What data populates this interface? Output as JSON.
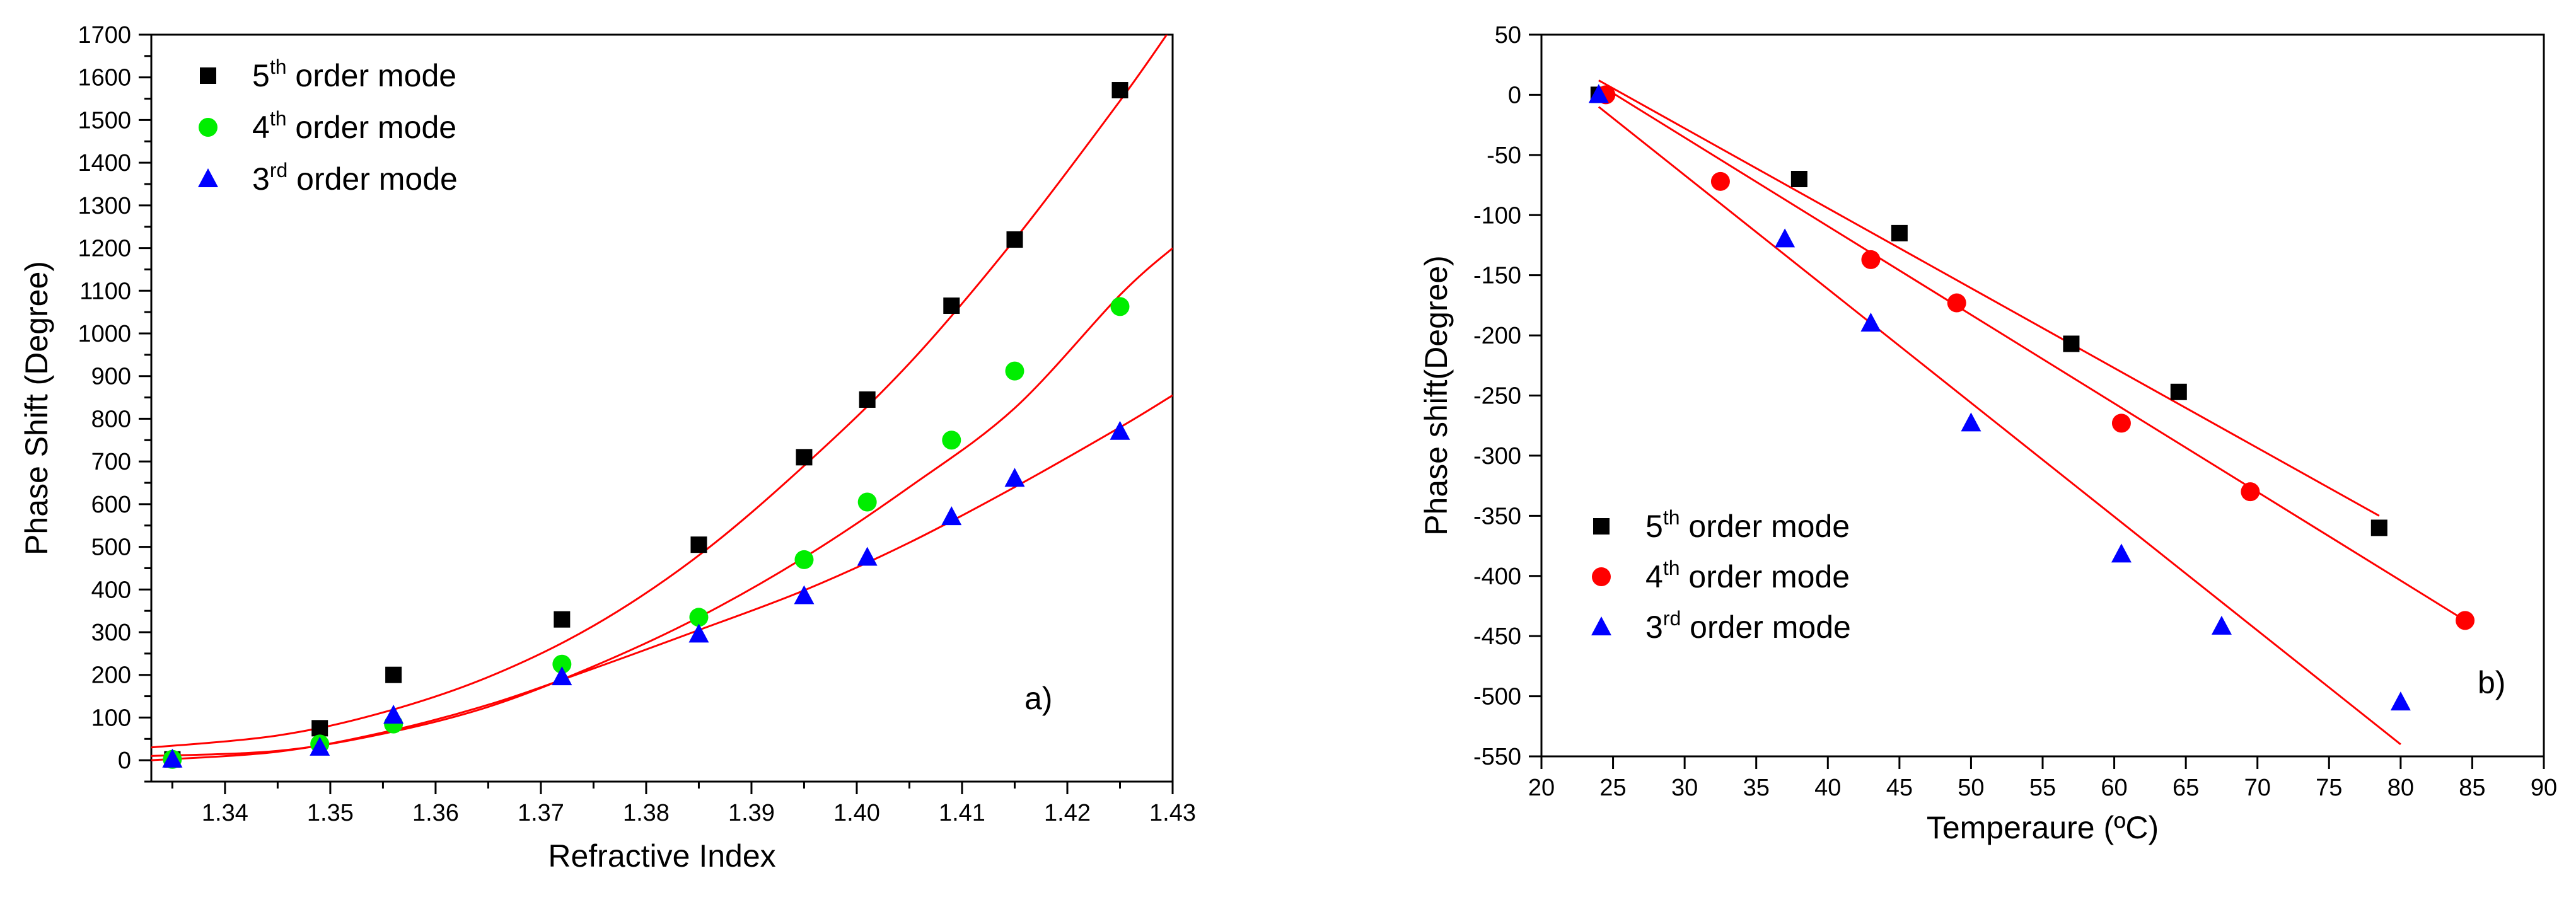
{
  "chart_data": [
    {
      "type": "scatter",
      "xlabel": "Refractive Index",
      "ylabel": "Phase Shift (Degree)",
      "xlim": [
        1.333,
        1.43
      ],
      "ylim": [
        -50,
        1700
      ],
      "xticks": [
        1.34,
        1.35,
        1.36,
        1.37,
        1.38,
        1.39,
        1.4,
        1.41,
        1.42,
        1.43
      ],
      "xtick_labels": [
        "1.34",
        "1.35",
        "1.36",
        "1.37",
        "1.38",
        "1.39",
        "1.40",
        "1.41",
        "1.42",
        "1.43"
      ],
      "yticks": [
        0,
        100,
        200,
        300,
        400,
        500,
        600,
        700,
        800,
        900,
        1000,
        1100,
        1200,
        1300,
        1400,
        1500,
        1600,
        1700
      ],
      "ytick_labels": [
        "0",
        "100",
        "200",
        "300",
        "400",
        "500",
        "600",
        "700",
        "800",
        "900",
        "1000",
        "1100",
        "1200",
        "1300",
        "1400",
        "1500",
        "1600",
        "1700"
      ],
      "panel_label": "a)",
      "legend_position": "top-left",
      "fit_type": "quadratic",
      "fit_color": "#ff0000",
      "series": [
        {
          "name": "5th order mode",
          "legend_base": "5",
          "legend_sup": "th",
          "legend_rest": " order mode",
          "marker": "square",
          "color": "#000000",
          "x": [
            1.335,
            1.349,
            1.356,
            1.372,
            1.385,
            1.395,
            1.401,
            1.409,
            1.415,
            1.425
          ],
          "y": [
            2,
            75,
            200,
            330,
            505,
            710,
            845,
            1065,
            1220,
            1570
          ],
          "fit": [
            [
              1.333,
              30
            ],
            [
              1.345,
              58
            ],
            [
              1.355,
              112
            ],
            [
              1.365,
              195
            ],
            [
              1.375,
              315
            ],
            [
              1.385,
              480
            ],
            [
              1.395,
              690
            ],
            [
              1.405,
              930
            ],
            [
              1.415,
              1220
            ],
            [
              1.425,
              1545
            ],
            [
              1.43,
              1720
            ]
          ]
        },
        {
          "name": "4th order mode",
          "legend_base": "4",
          "legend_sup": "th",
          "legend_rest": " order mode",
          "marker": "circle",
          "color": "#00ee00",
          "x": [
            1.335,
            1.349,
            1.356,
            1.372,
            1.385,
            1.395,
            1.401,
            1.409,
            1.415,
            1.425
          ],
          "y": [
            2,
            38,
            85,
            225,
            335,
            470,
            605,
            750,
            912,
            1063
          ],
          "fit": [
            [
              1.333,
              10
            ],
            [
              1.345,
              22
            ],
            [
              1.355,
              62
            ],
            [
              1.365,
              125
            ],
            [
              1.375,
              220
            ],
            [
              1.385,
              335
            ],
            [
              1.395,
              475
            ],
            [
              1.405,
              640
            ],
            [
              1.415,
              825
            ],
            [
              1.425,
              1090
            ],
            [
              1.43,
              1200
            ]
          ]
        },
        {
          "name": "3rd order mode",
          "legend_base": "3",
          "legend_sup": "rd",
          "legend_rest": " order mode",
          "marker": "triangle",
          "color": "#0000ff",
          "x": [
            1.335,
            1.349,
            1.356,
            1.372,
            1.385,
            1.395,
            1.401,
            1.409,
            1.415,
            1.425
          ],
          "y": [
            2,
            30,
            105,
            195,
            295,
            385,
            475,
            570,
            660,
            770
          ],
          "fit": [
            [
              1.333,
              0
            ],
            [
              1.345,
              20
            ],
            [
              1.355,
              65
            ],
            [
              1.365,
              130
            ],
            [
              1.375,
              215
            ],
            [
              1.385,
              305
            ],
            [
              1.395,
              398
            ],
            [
              1.405,
              510
            ],
            [
              1.415,
              640
            ],
            [
              1.425,
              780
            ],
            [
              1.43,
              855
            ]
          ]
        }
      ]
    },
    {
      "type": "scatter",
      "xlabel": "Temperaure (ºC)",
      "ylabel": "Phase shift(Degree)",
      "xlim": [
        20,
        90
      ],
      "ylim": [
        -550,
        50
      ],
      "xticks": [
        20,
        25,
        30,
        35,
        40,
        45,
        50,
        55,
        60,
        65,
        70,
        75,
        80,
        85,
        90
      ],
      "xtick_labels": [
        "20",
        "25",
        "30",
        "35",
        "40",
        "45",
        "50",
        "55",
        "60",
        "65",
        "70",
        "75",
        "80",
        "85",
        "90"
      ],
      "yticks": [
        50,
        0,
        -50,
        -100,
        -150,
        -200,
        -250,
        -300,
        -350,
        -400,
        -450,
        -500,
        -550
      ],
      "ytick_labels": [
        "50",
        "0",
        "-50",
        "-100",
        "-150",
        "-200",
        "-250",
        "-300",
        "-350",
        "-400",
        "-450",
        "-500",
        "-550"
      ],
      "panel_label": "b)",
      "legend_position": "bottom-left",
      "fit_type": "linear",
      "fit_color": "#ff0000",
      "series": [
        {
          "name": "5th order mode",
          "legend_base": "5",
          "legend_sup": "th",
          "legend_rest": " order mode",
          "marker": "square",
          "color": "#000000",
          "x": [
            24,
            38,
            45,
            57,
            64.5,
            78.5
          ],
          "y": [
            0,
            -70,
            -115,
            -207,
            -247,
            -360
          ],
          "fit": [
            [
              24,
              12
            ],
            [
              78.5,
              -350
            ]
          ]
        },
        {
          "name": "4th order mode",
          "legend_base": "4",
          "legend_sup": "th",
          "legend_rest": " order mode",
          "marker": "circle",
          "color": "#ff0000",
          "x": [
            24.5,
            32.5,
            43,
            49,
            60.5,
            69.5,
            84.5
          ],
          "y": [
            0,
            -72,
            -137,
            -173,
            -273,
            -330,
            -437
          ],
          "fit": [
            [
              24.5,
              5
            ],
            [
              84.5,
              -437
            ]
          ]
        },
        {
          "name": "3rd order mode",
          "legend_base": "3",
          "legend_sup": "rd",
          "legend_rest": " order mode",
          "marker": "triangle",
          "color": "#0000ff",
          "x": [
            24,
            37,
            43,
            50,
            60.5,
            67.5,
            80
          ],
          "y": [
            0,
            -120,
            -190,
            -273,
            -382,
            -442,
            -505
          ],
          "fit": [
            [
              24,
              -10
            ],
            [
              80,
              -540
            ]
          ]
        }
      ]
    }
  ]
}
